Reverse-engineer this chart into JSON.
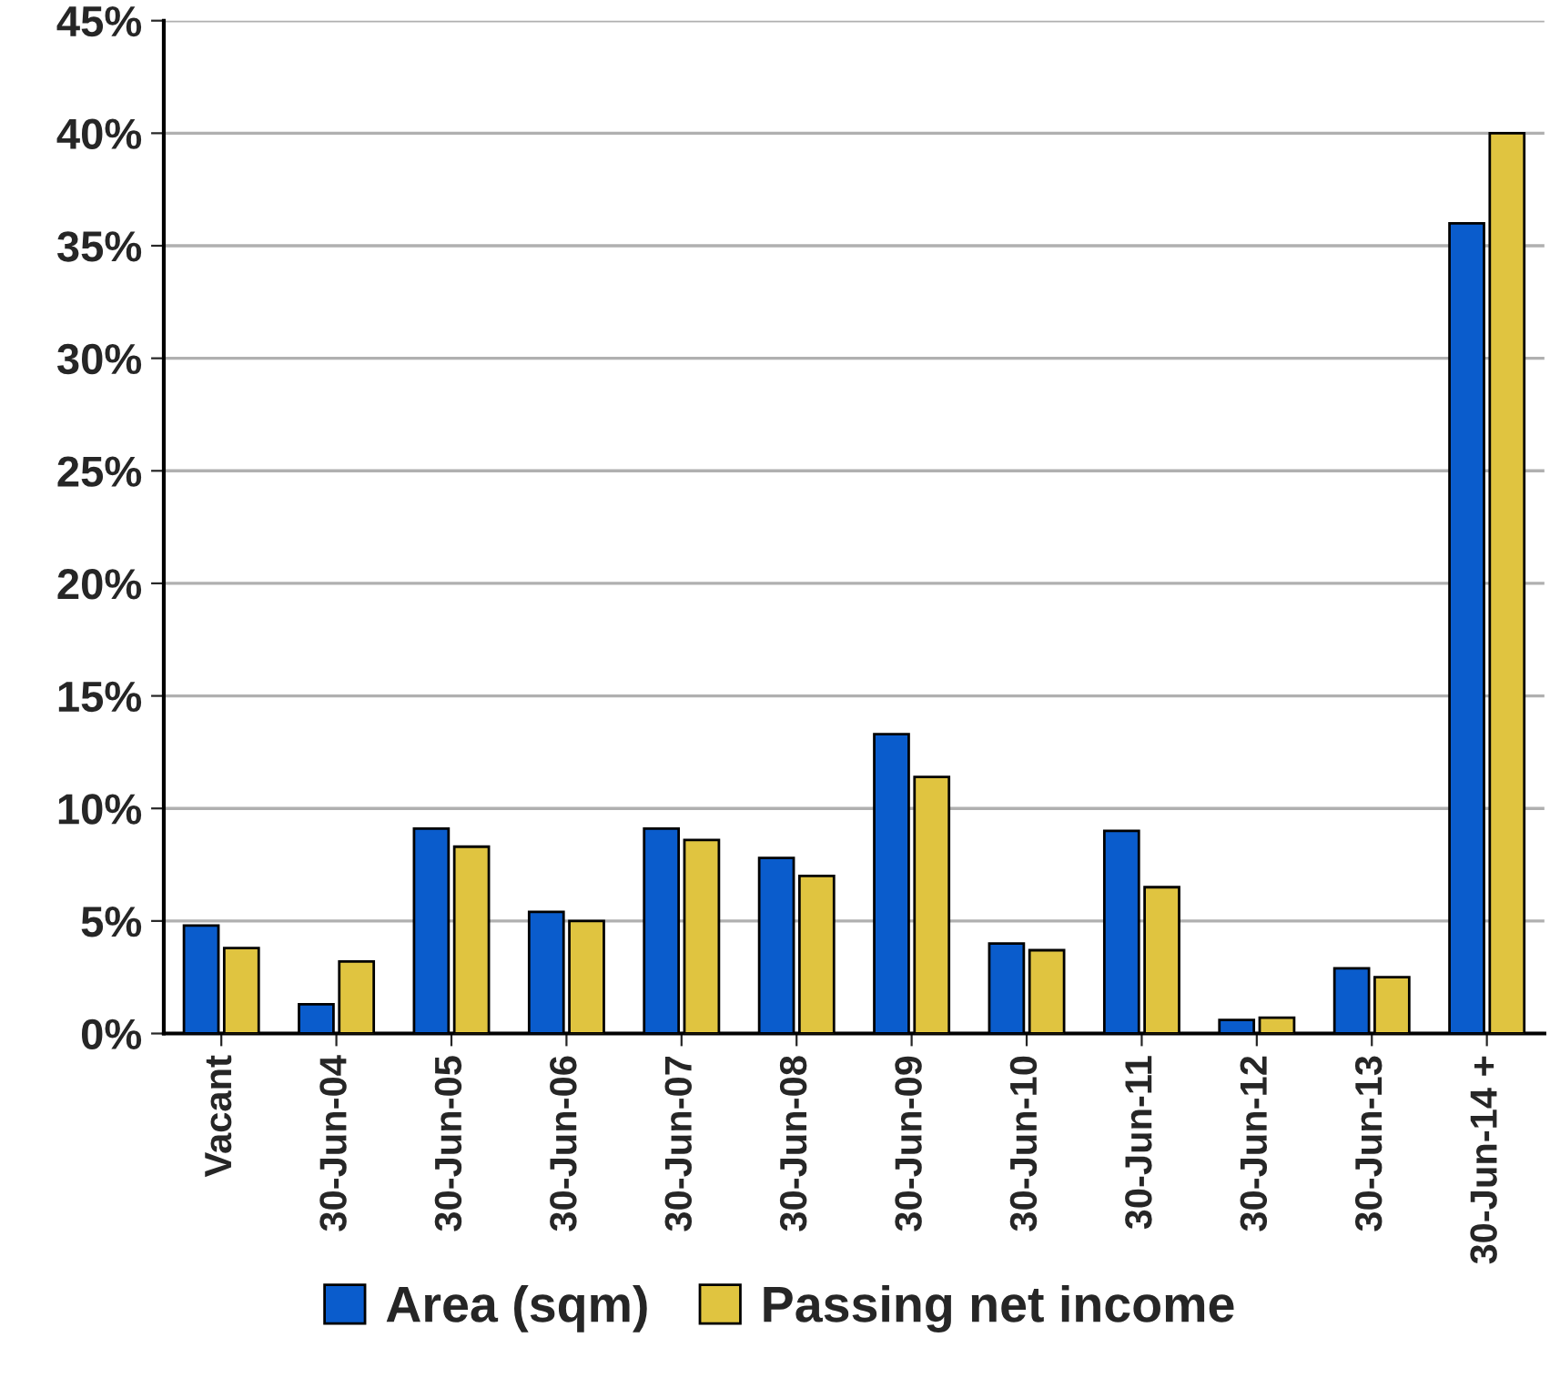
{
  "chart_data": {
    "type": "bar",
    "categories": [
      "Vacant",
      "30-Jun-04",
      "30-Jun-05",
      "30-Jun-06",
      "30-Jun-07",
      "30-Jun-08",
      "30-Jun-09",
      "30-Jun-10",
      "30-Jun-11",
      "30-Jun-12",
      "30-Jun-13",
      "30-Jun-14 +"
    ],
    "series": [
      {
        "name": "Area (sqm)",
        "color": "#0a5ccc",
        "values": [
          4.8,
          1.3,
          9.1,
          5.4,
          9.1,
          7.8,
          13.3,
          4.0,
          9.0,
          0.6,
          2.9,
          36.0
        ]
      },
      {
        "name": "Passing net income",
        "color": "#e0c440",
        "values": [
          3.8,
          3.2,
          8.3,
          5.0,
          8.6,
          7.0,
          11.4,
          3.7,
          6.5,
          0.7,
          2.5,
          40.0
        ]
      }
    ],
    "ylim": [
      0,
      45
    ],
    "yticks": [
      {
        "value": 0,
        "label": "0%"
      },
      {
        "value": 5,
        "label": "5%"
      },
      {
        "value": 10,
        "label": "10%"
      },
      {
        "value": 15,
        "label": "15%"
      },
      {
        "value": 20,
        "label": "20%"
      },
      {
        "value": 25,
        "label": "25%"
      },
      {
        "value": 30,
        "label": "30%"
      },
      {
        "value": 35,
        "label": "35%"
      },
      {
        "value": 40,
        "label": "40%"
      },
      {
        "value": 45,
        "label": "45%"
      }
    ],
    "grid": "y",
    "legend": "bottom"
  }
}
